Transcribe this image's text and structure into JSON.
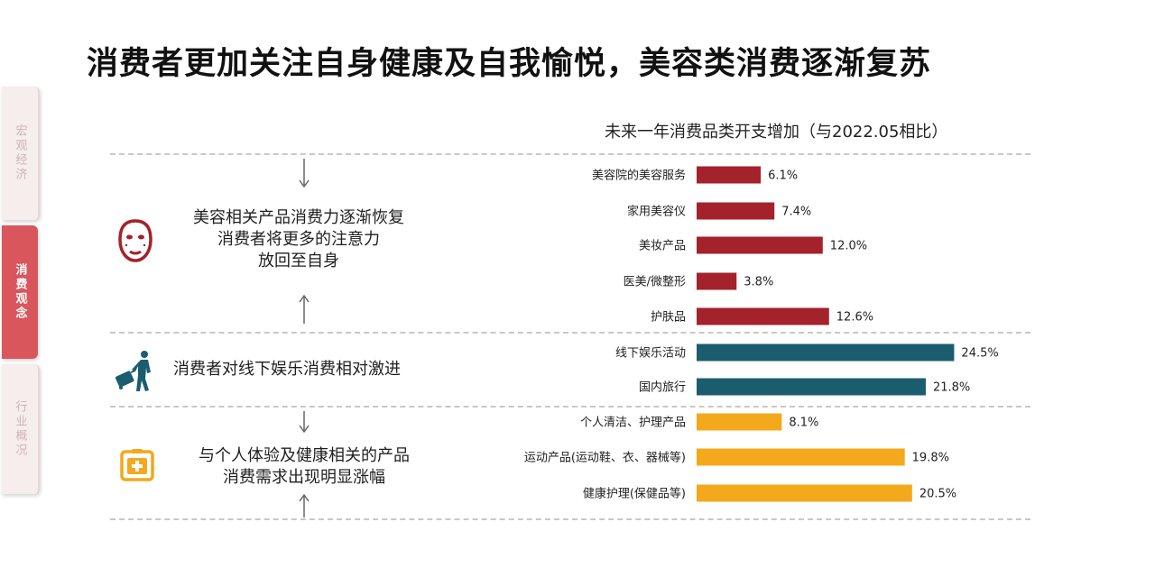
{
  "page": {
    "title": "消费者更加关注自身健康及自我愉悦，美容类消费逐渐复苏"
  },
  "sidebar": {
    "tabs": [
      {
        "label": "宏观经济"
      },
      {
        "label": "消费观念"
      },
      {
        "label": "行业概况"
      }
    ]
  },
  "groups": [
    {
      "line1": "美容相关产品消费力逐渐恢复",
      "line2": "消费者将更多的注意力",
      "line3": "放回至自身",
      "icon": "face-mask-icon"
    },
    {
      "line1": "消费者对线下娱乐消费相对激进",
      "icon": "traveler-icon"
    },
    {
      "line1": "与个人体验及健康相关的产品",
      "line2": "消费需求出现明显涨幅",
      "icon": "medical-kit-icon"
    }
  ],
  "chart_data": {
    "type": "bar",
    "orientation": "horizontal",
    "title": "未来一年消费品类开支增加（与2022.05相比）",
    "unit": "%",
    "categories": [
      "美容院的美容服务",
      "家用美容仪",
      "美妆产品",
      "医美/微整形",
      "护肤品",
      "线下娱乐活动",
      "国内旅行",
      "个人清洁、护理产品",
      "运动产品(运动鞋、衣、器械等)",
      "健康护理(保健品等)"
    ],
    "values": [
      6.1,
      7.4,
      12.0,
      3.8,
      12.6,
      24.5,
      21.8,
      8.1,
      19.8,
      20.5
    ],
    "value_labels": [
      "6.1%",
      "7.4%",
      "12.0%",
      "3.8%",
      "12.6%",
      "24.5%",
      "21.8%",
      "8.1%",
      "19.8%",
      "20.5%"
    ],
    "groups": [
      0,
      0,
      0,
      0,
      0,
      1,
      1,
      2,
      2,
      2
    ],
    "group_colors": [
      "#a3222b",
      "#1b5d6e",
      "#f4a81c"
    ],
    "xlim": [
      0,
      25
    ],
    "grid": false,
    "legend": "none"
  }
}
